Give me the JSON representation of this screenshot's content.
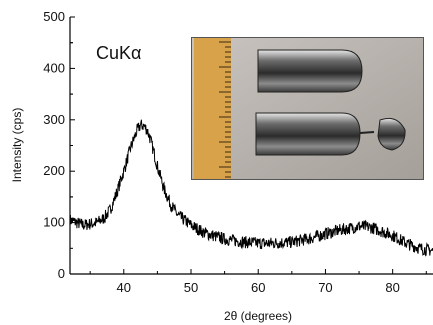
{
  "chart_data": {
    "type": "line",
    "title": "",
    "annotation": "CuKα",
    "xlabel": "2θ (degrees)",
    "ylabel": "Intensity (cps)",
    "xlim": [
      32,
      86
    ],
    "ylim": [
      0,
      500
    ],
    "xticks": [
      40,
      50,
      60,
      70,
      80
    ],
    "yticks": [
      0,
      100,
      200,
      300,
      400,
      500
    ],
    "grid": false,
    "line_color": "#000000",
    "noise_amplitude": 12,
    "inset_photo": "metallic glass ingots beside a ruler",
    "series": [
      {
        "x": [
          32,
          34,
          36,
          37,
          38,
          39,
          40,
          41,
          42,
          42.5,
          43,
          43.5,
          44,
          45,
          46,
          47,
          48,
          50,
          52,
          55,
          58,
          60,
          62,
          65,
          68,
          70,
          72,
          74,
          75,
          76,
          77,
          78,
          80,
          82,
          84,
          86
        ],
        "values": [
          105,
          95,
          100,
          108,
          125,
          160,
          200,
          245,
          280,
          290,
          288,
          280,
          260,
          210,
          165,
          135,
          115,
          95,
          80,
          68,
          62,
          60,
          60,
          62,
          70,
          78,
          85,
          90,
          93,
          92,
          90,
          85,
          75,
          60,
          50,
          45
        ]
      }
    ]
  }
}
